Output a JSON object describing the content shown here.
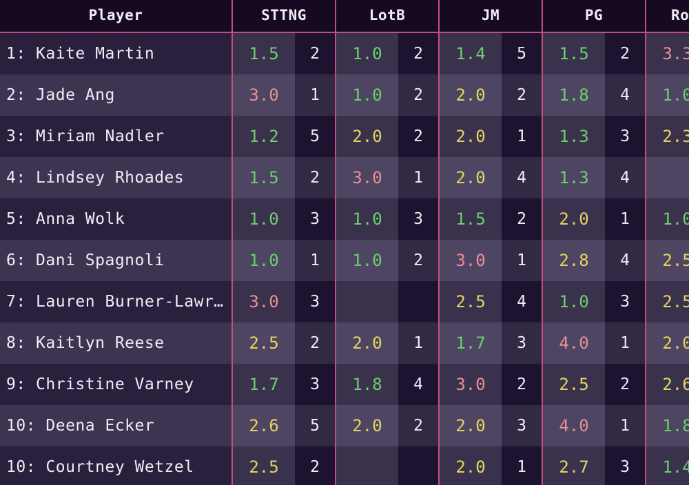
{
  "header": {
    "player": "Player",
    "columns": [
      "STTNG",
      "LotB",
      "JM",
      "PG",
      "Ro"
    ]
  },
  "colors": {
    "good": "#6bd16b",
    "mid": "#e6d45f",
    "bad": "#ea8f94",
    "divider": "#c2507d"
  },
  "rows": [
    {
      "name": "1: Kaite Martin",
      "cells": [
        {
          "score": "1.5",
          "rank": "2",
          "tone": "good"
        },
        {
          "score": "1.0",
          "rank": "2",
          "tone": "good"
        },
        {
          "score": "1.4",
          "rank": "5",
          "tone": "good"
        },
        {
          "score": "1.5",
          "rank": "2",
          "tone": "good"
        },
        {
          "score": "3.3",
          "rank": "",
          "tone": "bad"
        }
      ]
    },
    {
      "name": "2: Jade Ang",
      "cells": [
        {
          "score": "3.0",
          "rank": "1",
          "tone": "bad"
        },
        {
          "score": "1.0",
          "rank": "2",
          "tone": "good"
        },
        {
          "score": "2.0",
          "rank": "2",
          "tone": "mid"
        },
        {
          "score": "1.8",
          "rank": "4",
          "tone": "good"
        },
        {
          "score": "1.0",
          "rank": "",
          "tone": "good"
        }
      ]
    },
    {
      "name": "3: Miriam Nadler",
      "cells": [
        {
          "score": "1.2",
          "rank": "5",
          "tone": "good"
        },
        {
          "score": "2.0",
          "rank": "2",
          "tone": "mid"
        },
        {
          "score": "2.0",
          "rank": "1",
          "tone": "mid"
        },
        {
          "score": "1.3",
          "rank": "3",
          "tone": "good"
        },
        {
          "score": "2.3",
          "rank": "",
          "tone": "mid"
        }
      ]
    },
    {
      "name": "4: Lindsey Rhoades",
      "cells": [
        {
          "score": "1.5",
          "rank": "2",
          "tone": "good"
        },
        {
          "score": "3.0",
          "rank": "1",
          "tone": "bad"
        },
        {
          "score": "2.0",
          "rank": "4",
          "tone": "mid"
        },
        {
          "score": "1.3",
          "rank": "4",
          "tone": "good"
        },
        {
          "score": "",
          "rank": "",
          "tone": "mid"
        }
      ]
    },
    {
      "name": "5: Anna Wolk",
      "cells": [
        {
          "score": "1.0",
          "rank": "3",
          "tone": "good"
        },
        {
          "score": "1.0",
          "rank": "3",
          "tone": "good"
        },
        {
          "score": "1.5",
          "rank": "2",
          "tone": "good"
        },
        {
          "score": "2.0",
          "rank": "1",
          "tone": "mid"
        },
        {
          "score": "1.0",
          "rank": "",
          "tone": "good"
        }
      ]
    },
    {
      "name": "6: Dani Spagnoli",
      "cells": [
        {
          "score": "1.0",
          "rank": "1",
          "tone": "good"
        },
        {
          "score": "1.0",
          "rank": "2",
          "tone": "good"
        },
        {
          "score": "3.0",
          "rank": "1",
          "tone": "bad"
        },
        {
          "score": "2.8",
          "rank": "4",
          "tone": "mid"
        },
        {
          "score": "2.5",
          "rank": "",
          "tone": "mid"
        }
      ]
    },
    {
      "name": "7: Lauren Burner-Lawr…",
      "cells": [
        {
          "score": "3.0",
          "rank": "3",
          "tone": "bad"
        },
        {
          "score": "",
          "rank": "",
          "tone": "mid"
        },
        {
          "score": "2.5",
          "rank": "4",
          "tone": "mid"
        },
        {
          "score": "1.0",
          "rank": "3",
          "tone": "good"
        },
        {
          "score": "2.5",
          "rank": "",
          "tone": "mid"
        }
      ]
    },
    {
      "name": "8: Kaitlyn Reese",
      "cells": [
        {
          "score": "2.5",
          "rank": "2",
          "tone": "mid"
        },
        {
          "score": "2.0",
          "rank": "1",
          "tone": "mid"
        },
        {
          "score": "1.7",
          "rank": "3",
          "tone": "good"
        },
        {
          "score": "4.0",
          "rank": "1",
          "tone": "bad"
        },
        {
          "score": "2.0",
          "rank": "",
          "tone": "mid"
        }
      ]
    },
    {
      "name": "9: Christine Varney",
      "cells": [
        {
          "score": "1.7",
          "rank": "3",
          "tone": "good"
        },
        {
          "score": "1.8",
          "rank": "4",
          "tone": "good"
        },
        {
          "score": "3.0",
          "rank": "2",
          "tone": "bad"
        },
        {
          "score": "2.5",
          "rank": "2",
          "tone": "mid"
        },
        {
          "score": "2.6",
          "rank": "",
          "tone": "mid"
        }
      ]
    },
    {
      "name": "10: Deena Ecker",
      "cells": [
        {
          "score": "2.6",
          "rank": "5",
          "tone": "mid"
        },
        {
          "score": "2.0",
          "rank": "2",
          "tone": "mid"
        },
        {
          "score": "2.0",
          "rank": "3",
          "tone": "mid"
        },
        {
          "score": "4.0",
          "rank": "1",
          "tone": "bad"
        },
        {
          "score": "1.8",
          "rank": "",
          "tone": "good"
        }
      ]
    },
    {
      "name": "10: Courtney Wetzel",
      "cells": [
        {
          "score": "2.5",
          "rank": "2",
          "tone": "mid"
        },
        {
          "score": "",
          "rank": "",
          "tone": "mid"
        },
        {
          "score": "2.0",
          "rank": "1",
          "tone": "mid"
        },
        {
          "score": "2.7",
          "rank": "3",
          "tone": "mid"
        },
        {
          "score": "1.4",
          "rank": "",
          "tone": "good"
        }
      ]
    }
  ]
}
